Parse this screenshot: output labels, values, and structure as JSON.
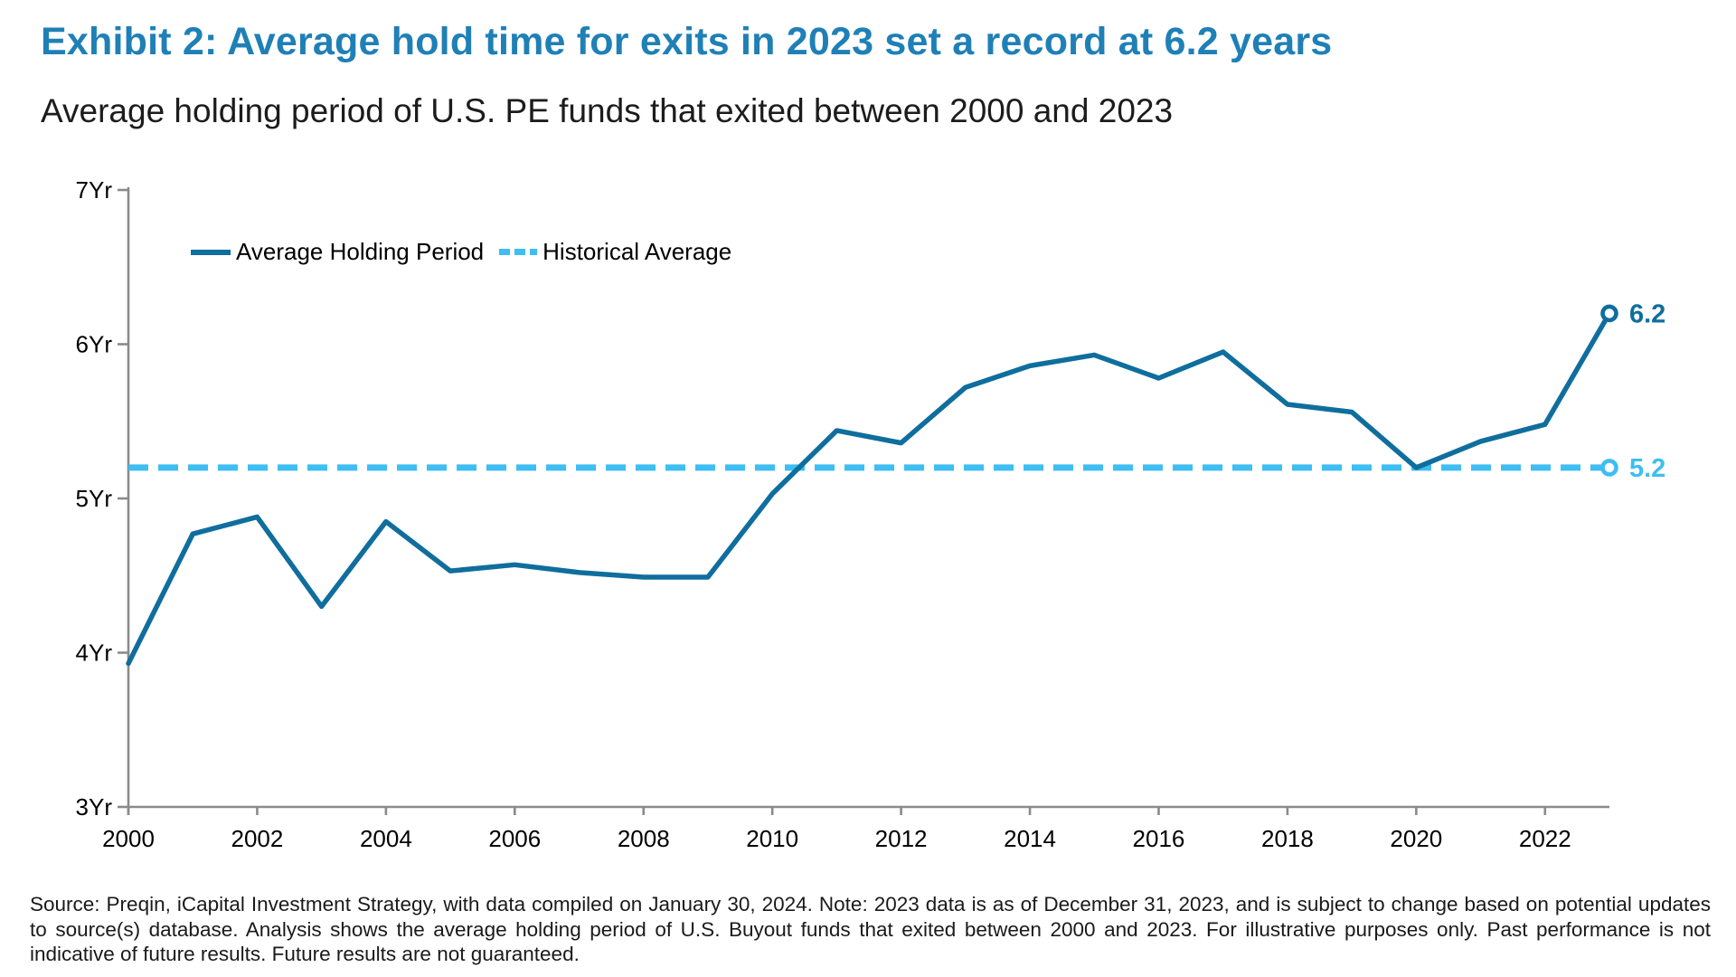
{
  "header": {
    "title": "Exhibit 2: Average hold time for exits in 2023 set a record at 6.2 years",
    "subtitle": "Average holding period of U.S. PE funds that exited between 2000 and 2023"
  },
  "colors": {
    "title_blue": "#1F80B6",
    "line_blue": "#0F6E9D",
    "light_blue": "#3EBEF2",
    "axis_gray": "#8A8A8A",
    "text_black": "#1a1a1a"
  },
  "chart_data": {
    "type": "line",
    "title": "Average holding period of U.S. PE funds that exited between 2000 and 2023",
    "xlabel": "",
    "ylabel": "",
    "xlim": [
      2000,
      2023
    ],
    "ylim": [
      3,
      7
    ],
    "grid": false,
    "legend_position": "top-left-inside",
    "x": [
      2000,
      2001,
      2002,
      2003,
      2004,
      2005,
      2006,
      2007,
      2008,
      2009,
      2010,
      2011,
      2012,
      2013,
      2014,
      2015,
      2016,
      2017,
      2018,
      2019,
      2020,
      2021,
      2022,
      2023
    ],
    "series": [
      {
        "name": "Average Holding Period",
        "style": "solid",
        "color": "#0F6E9D",
        "values": [
          3.93,
          4.77,
          4.88,
          4.3,
          4.85,
          4.53,
          4.57,
          4.52,
          4.49,
          4.49,
          5.03,
          5.44,
          5.36,
          5.72,
          5.86,
          5.93,
          5.78,
          5.95,
          5.61,
          5.56,
          5.2,
          5.37,
          5.48,
          6.2
        ]
      },
      {
        "name": "Historical Average",
        "style": "dashed",
        "color": "#3EBEF2",
        "constant_value": 5.2
      }
    ],
    "y_ticks": [
      {
        "value": 7,
        "label": "7Yr"
      },
      {
        "value": 6,
        "label": "6Yr"
      },
      {
        "value": 5,
        "label": "5Yr"
      },
      {
        "value": 4,
        "label": "4Yr"
      },
      {
        "value": 3,
        "label": "3Yr"
      }
    ],
    "x_tick_years": [
      2000,
      2002,
      2004,
      2006,
      2008,
      2010,
      2012,
      2014,
      2016,
      2018,
      2020,
      2022
    ],
    "annotations": [
      {
        "text": "6.2",
        "x": 2023,
        "y": 6.2,
        "series": 0
      },
      {
        "text": "5.2",
        "x": 2023,
        "y": 5.2,
        "series": 1
      }
    ]
  },
  "footer": {
    "source": "Source: Preqin, iCapital Investment Strategy, with data compiled on January 30, 2024. Note: 2023 data is as of December 31, 2023, and is subject to change based on potential updates to source(s) database. Analysis shows the average holding period of U.S. Buyout funds that exited between 2000 and 2023. For illustrative purposes only. Past performance is not indicative of future results. Future results are not guaranteed."
  }
}
